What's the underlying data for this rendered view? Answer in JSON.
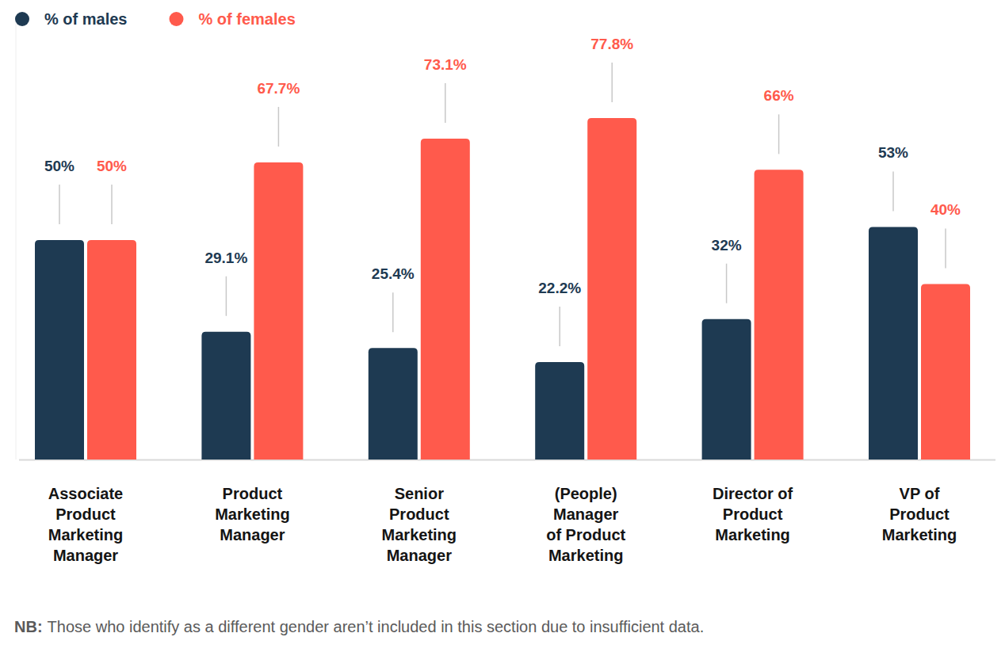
{
  "chart_data": {
    "type": "bar",
    "categories": [
      "Associate Product Marketing Manager",
      "Product Marketing Manager",
      "Senior Product Marketing Manager",
      "(People) Manager of Product Marketing",
      "Director of Product Marketing",
      "VP of Product Marketing"
    ],
    "series": [
      {
        "name": "% of males",
        "color": "#1e3a52",
        "values": [
          50,
          29.1,
          25.4,
          22.2,
          32,
          53
        ],
        "value_labels": [
          "50%",
          "29.1%",
          "25.4%",
          "22.2%",
          "32%",
          "53%"
        ]
      },
      {
        "name": "% of females",
        "color": "#ff5a4c",
        "values": [
          50,
          67.7,
          73.1,
          77.8,
          66,
          40
        ],
        "value_labels": [
          "50%",
          "67.7%",
          "73.1%",
          "77.8%",
          "66%",
          "40%"
        ]
      }
    ],
    "ylim": [
      0,
      100
    ],
    "data_labels": true,
    "legend": "top-left",
    "grid": false,
    "note_label": "NB:",
    "note": "Those who identify as a different gender aren’t included in this section due to insufficient data."
  }
}
